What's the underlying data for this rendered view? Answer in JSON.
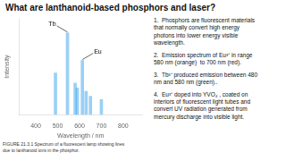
{
  "chart_data": {
    "type": "bar",
    "title": "What are lanthanoid-based phosphors and laser?",
    "xlabel": "Wavelength / nm",
    "ylabel": "Intensity",
    "x": [
      490,
      545,
      580,
      590,
      613,
      630,
      650,
      700
    ],
    "values": [
      0.5,
      0.98,
      0.38,
      0.32,
      0.65,
      0.28,
      0.22,
      0.18
    ],
    "xlim": [
      380,
      830
    ],
    "xticks": [
      400,
      500,
      600,
      700,
      800
    ],
    "ylim": [
      0,
      1.15
    ],
    "grid": false,
    "tick_labels": "x",
    "annotations": [
      {
        "text": "Tb",
        "x": 545,
        "y": 0.98
      },
      {
        "text": "Eu",
        "x": 613,
        "y": 0.65
      }
    ],
    "caption": "FIGURE 21.3.1 Spectrum of a fluorescent lamp showing lines\ndue to lanthanoid ions in the phosphor.",
    "bullet_points": [
      "1.  Phosphors are fluorescent materials\nthat normally convert high energy\nphotons into lower energy visible\nwavelength.",
      "2.  Emission spectrum of Eu³⁺ in range\n580 nm (orange)  to 700 nm (red).",
      "3.  Tb³⁺ produced emission between 480\nnm and 580 nm (green)..",
      "4.  Eu³⁺ doped into YVO₄ , coated on\ninteriors of fluorescent light tubes and\nconvert UV radiation generated from\nmercury discharge into visible light."
    ]
  }
}
